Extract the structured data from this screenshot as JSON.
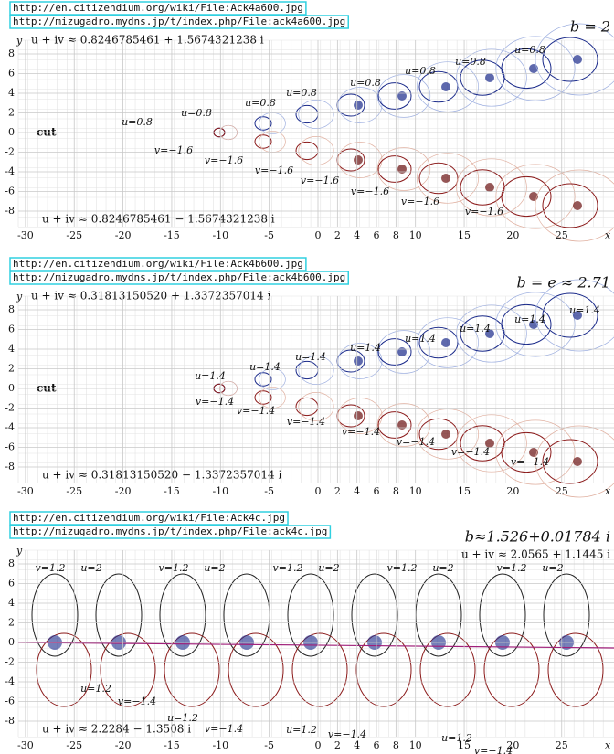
{
  "panels": [
    {
      "urls": [
        "http://en.citizendium.org/wiki/File:Ack4a600.jpg",
        "http://mizugadro.mydns.jp/t/index.php/File:ack4a600.jpg"
      ],
      "b_label": "b = 2",
      "cut": "cut",
      "fixed_upper": "u + iv ≈ 0.8246785461 + 1.5674321238 i",
      "fixed_lower": "u + iv ≈ 0.8246785461 − 1.5674321238 i",
      "x_axis_label": "x",
      "y_axis_label": "y",
      "xticks": [
        -30,
        -25,
        -20,
        -15,
        -10,
        -5,
        0,
        2,
        4,
        6,
        8,
        10,
        15,
        20,
        25
      ],
      "yticks": [
        8,
        6,
        4,
        2,
        0,
        -2,
        -4,
        -6,
        -8
      ],
      "contour_labels": [
        "u=0.8",
        "u=0.8",
        "u=0.8",
        "u=0.8",
        "u=0.8",
        "u=0.8",
        "u=0.8",
        "u=0.8",
        "v=−1.6",
        "v=−1.6",
        "v=−1.6",
        "v=−1.6",
        "v=−1.6",
        "v=−1.6",
        "v=−1.6"
      ]
    },
    {
      "urls": [
        "http://en.citizendium.org/wiki/File:Ack4b600.jpg",
        "http://mizugadro.mydns.jp/t/index.php/File:ack4b600.jpg"
      ],
      "b_label": "b = e ≈ 2.71",
      "cut": "cut",
      "fixed_upper": "u + iv ≈ 0.31813150520 + 1.3372357014 i",
      "fixed_lower": "u + iv ≈ 0.31813150520 − 1.3372357014 i",
      "x_axis_label": "x",
      "y_axis_label": "y",
      "xticks": [
        -30,
        -25,
        -20,
        -15,
        -10,
        -5,
        0,
        2,
        4,
        6,
        8,
        10,
        15,
        20,
        25
      ],
      "yticks": [
        8,
        6,
        4,
        2,
        0,
        -2,
        -4,
        -6,
        -8
      ],
      "contour_labels": [
        "u=1.4",
        "u=1.4",
        "u=1.4",
        "u=1.4",
        "u=1.4",
        "u=1.4",
        "u=1.4",
        "u=1.4",
        "v=−1.4",
        "v=−1.4",
        "v=−1.4",
        "v=−1.4",
        "v=−1.4",
        "v=−1.4",
        "v=−1.4"
      ]
    },
    {
      "urls": [
        "http://en.citizendium.org/wiki/File:Ack4c.jpg",
        "http://mizugadro.mydns.jp/t/index.php/File:ack4c.jpg"
      ],
      "b_label": "b≈1.526+0.01784 i",
      "fixed_upper": "u + iv ≈ 2.0565 + 1.1445 i",
      "fixed_lower": "u + iv ≈ 2.2284 − 1.3508 i",
      "x_axis_label": "x",
      "y_axis_label": "y",
      "xticks": [
        -30,
        -25,
        -20,
        -15,
        -10,
        -5,
        0,
        2,
        4,
        6,
        8,
        10,
        15,
        20,
        25
      ],
      "yticks": [
        8,
        6,
        4,
        2,
        0,
        -2,
        -4,
        -6,
        -8
      ],
      "contour_labels": [
        "v=1.2",
        "u=2",
        "v=1.2",
        "u=2",
        "v=1.2",
        "u=2",
        "v=1.2",
        "u=2",
        "v=1.2",
        "u=2",
        "u=1.2",
        "v=−1.4",
        "u=1.2",
        "v=−1.4",
        "u=1.2",
        "v=−1.4",
        "u=1.2",
        "v=−1.4"
      ]
    }
  ]
}
